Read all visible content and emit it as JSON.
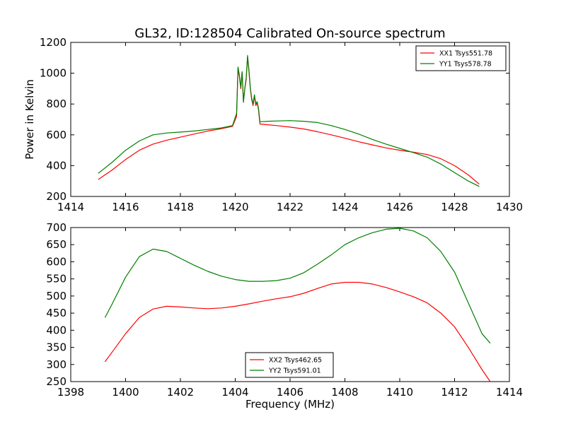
{
  "figure": {
    "title": "GL32, ID:128504 Calibrated On-source spectrum",
    "xlabel": "Frequency (MHz)"
  },
  "chart_data": [
    {
      "type": "line",
      "ylabel": "Power in Kelvin",
      "xlim": [
        1414,
        1430
      ],
      "ylim": [
        200,
        1200
      ],
      "xticks": [
        "1414",
        "1416",
        "1418",
        "1420",
        "1422",
        "1424",
        "1426",
        "1428",
        "1430"
      ],
      "yticks": [
        "200",
        "400",
        "600",
        "800",
        "1000",
        "1200"
      ],
      "legend_position": "top-right",
      "series": [
        {
          "name": "XX1 Tsys551.78",
          "color": "#ff0000",
          "points": [
            [
              1415,
              310
            ],
            [
              1415.5,
              370
            ],
            [
              1416,
              440
            ],
            [
              1416.5,
              500
            ],
            [
              1417,
              540
            ],
            [
              1417.5,
              565
            ],
            [
              1418,
              585
            ],
            [
              1418.5,
              605
            ],
            [
              1419,
              625
            ],
            [
              1419.5,
              640
            ],
            [
              1419.9,
              655
            ],
            [
              1420.05,
              720
            ],
            [
              1420.1,
              1030
            ],
            [
              1420.15,
              980
            ],
            [
              1420.2,
              900
            ],
            [
              1420.25,
              1005
            ],
            [
              1420.3,
              820
            ],
            [
              1420.35,
              900
            ],
            [
              1420.4,
              960
            ],
            [
              1420.45,
              1105
            ],
            [
              1420.5,
              1010
            ],
            [
              1420.55,
              900
            ],
            [
              1420.6,
              830
            ],
            [
              1420.65,
              790
            ],
            [
              1420.7,
              850
            ],
            [
              1420.75,
              790
            ],
            [
              1420.8,
              810
            ],
            [
              1420.85,
              760
            ],
            [
              1420.9,
              670
            ],
            [
              1421.2,
              665
            ],
            [
              1421.5,
              660
            ],
            [
              1422,
              650
            ],
            [
              1422.5,
              638
            ],
            [
              1423,
              620
            ],
            [
              1423.5,
              600
            ],
            [
              1424,
              578
            ],
            [
              1424.5,
              555
            ],
            [
              1425,
              535
            ],
            [
              1425.5,
              515
            ],
            [
              1426,
              500
            ],
            [
              1426.5,
              487
            ],
            [
              1427,
              472
            ],
            [
              1427.5,
              445
            ],
            [
              1428,
              400
            ],
            [
              1428.5,
              340
            ],
            [
              1428.9,
              280
            ]
          ]
        },
        {
          "name": "YY1 Tsys578.78",
          "color": "#008000",
          "points": [
            [
              1415,
              350
            ],
            [
              1415.5,
              420
            ],
            [
              1416,
              500
            ],
            [
              1416.5,
              560
            ],
            [
              1417,
              600
            ],
            [
              1417.5,
              612
            ],
            [
              1418,
              618
            ],
            [
              1418.5,
              625
            ],
            [
              1419,
              635
            ],
            [
              1419.5,
              645
            ],
            [
              1419.9,
              660
            ],
            [
              1420.05,
              740
            ],
            [
              1420.1,
              1040
            ],
            [
              1420.15,
              990
            ],
            [
              1420.2,
              910
            ],
            [
              1420.25,
              1010
            ],
            [
              1420.3,
              810
            ],
            [
              1420.35,
              905
            ],
            [
              1420.4,
              970
            ],
            [
              1420.45,
              1115
            ],
            [
              1420.5,
              1020
            ],
            [
              1420.55,
              905
            ],
            [
              1420.6,
              840
            ],
            [
              1420.65,
              800
            ],
            [
              1420.7,
              860
            ],
            [
              1420.75,
              800
            ],
            [
              1420.8,
              815
            ],
            [
              1420.85,
              770
            ],
            [
              1420.9,
              685
            ],
            [
              1421.2,
              688
            ],
            [
              1421.5,
              690
            ],
            [
              1422,
              692
            ],
            [
              1422.5,
              688
            ],
            [
              1423,
              680
            ],
            [
              1423.5,
              660
            ],
            [
              1424,
              635
            ],
            [
              1424.5,
              605
            ],
            [
              1425,
              570
            ],
            [
              1425.5,
              540
            ],
            [
              1426,
              512
            ],
            [
              1426.5,
              485
            ],
            [
              1427,
              455
            ],
            [
              1427.5,
              410
            ],
            [
              1428,
              355
            ],
            [
              1428.5,
              300
            ],
            [
              1428.9,
              265
            ]
          ]
        }
      ]
    },
    {
      "type": "line",
      "ylabel": "",
      "xlim": [
        1398,
        1414
      ],
      "ylim": [
        250,
        700
      ],
      "xticks": [
        "1398",
        "1400",
        "1402",
        "1404",
        "1406",
        "1408",
        "1410",
        "1412",
        "1414"
      ],
      "yticks": [
        "250",
        "300",
        "350",
        "400",
        "450",
        "500",
        "550",
        "600",
        "650",
        "700"
      ],
      "legend_position": "lower-center",
      "series": [
        {
          "name": "XX2 Tsys462.65",
          "color": "#ff0000",
          "points": [
            [
              1399.25,
              308
            ],
            [
              1399.5,
              335
            ],
            [
              1400,
              390
            ],
            [
              1400.5,
              437
            ],
            [
              1401,
              462
            ],
            [
              1401.5,
              470
            ],
            [
              1402,
              468
            ],
            [
              1402.5,
              465
            ],
            [
              1403,
              463
            ],
            [
              1403.5,
              465
            ],
            [
              1404,
              470
            ],
            [
              1404.5,
              477
            ],
            [
              1405,
              485
            ],
            [
              1405.5,
              492
            ],
            [
              1406,
              498
            ],
            [
              1406.5,
              508
            ],
            [
              1407,
              522
            ],
            [
              1407.5,
              535
            ],
            [
              1408,
              540
            ],
            [
              1408.5,
              540
            ],
            [
              1409,
              535
            ],
            [
              1409.5,
              525
            ],
            [
              1410,
              512
            ],
            [
              1410.5,
              498
            ],
            [
              1411,
              480
            ],
            [
              1411.5,
              450
            ],
            [
              1412,
              410
            ],
            [
              1412.5,
              350
            ],
            [
              1413,
              285
            ],
            [
              1413.3,
              250
            ]
          ]
        },
        {
          "name": "YY2 Tsys591.01",
          "color": "#008000",
          "points": [
            [
              1399.25,
              437
            ],
            [
              1399.5,
              475
            ],
            [
              1400,
              555
            ],
            [
              1400.5,
              615
            ],
            [
              1401,
              637
            ],
            [
              1401.5,
              630
            ],
            [
              1402,
              610
            ],
            [
              1402.5,
              590
            ],
            [
              1403,
              572
            ],
            [
              1403.5,
              558
            ],
            [
              1404,
              548
            ],
            [
              1404.5,
              543
            ],
            [
              1405,
              543
            ],
            [
              1405.5,
              545
            ],
            [
              1406,
              552
            ],
            [
              1406.5,
              568
            ],
            [
              1407,
              593
            ],
            [
              1407.5,
              620
            ],
            [
              1408,
              650
            ],
            [
              1408.5,
              670
            ],
            [
              1409,
              685
            ],
            [
              1409.5,
              695
            ],
            [
              1410,
              698
            ],
            [
              1410.5,
              690
            ],
            [
              1411,
              670
            ],
            [
              1411.5,
              630
            ],
            [
              1412,
              570
            ],
            [
              1412.5,
              480
            ],
            [
              1413,
              390
            ],
            [
              1413.3,
              362
            ]
          ]
        }
      ]
    }
  ]
}
